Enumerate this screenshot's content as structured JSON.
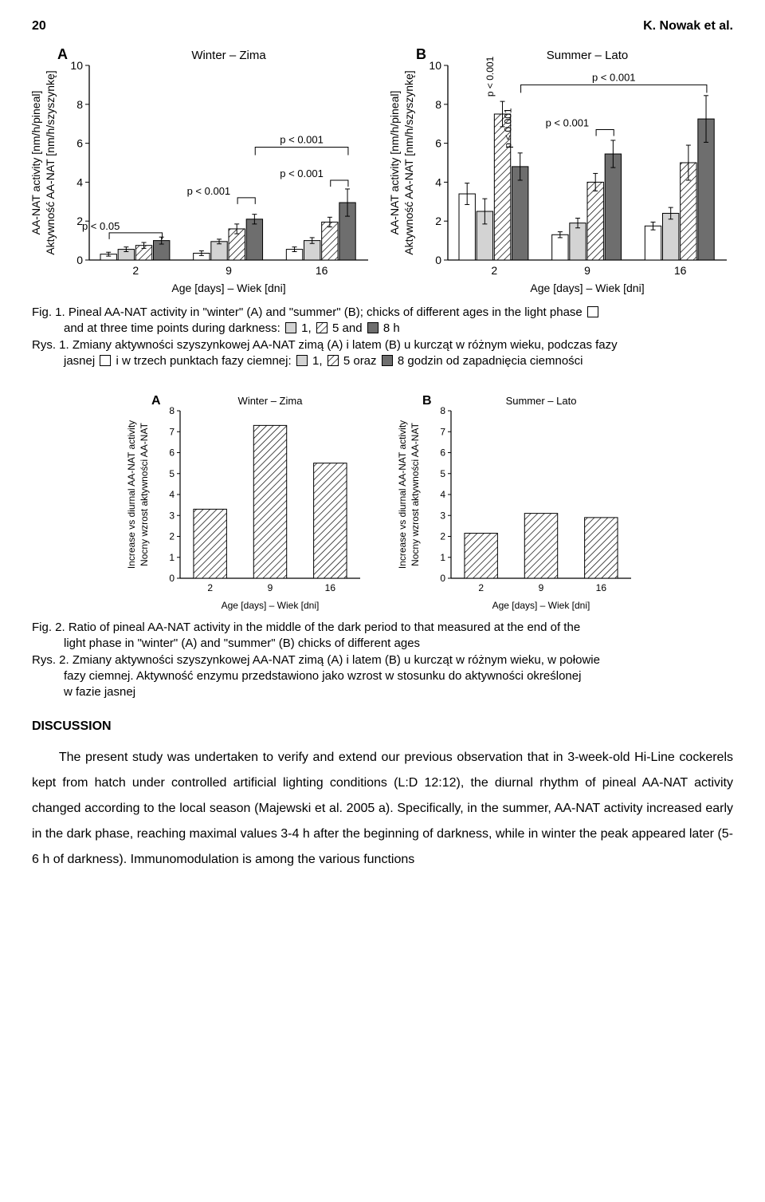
{
  "header": {
    "page_number": "20",
    "authors": "K. Nowak et al."
  },
  "fig1": {
    "panelA": {
      "letter": "A",
      "title": "Winter – Zima",
      "type": "grouped-bar",
      "x_label": "Age [days] – Wiek [dni]",
      "y_label_line1": "AA-NAT activity [nm/h/pineal]",
      "y_label_line2": "Aktywność AA-NAT [nm/h/szyszynkę]",
      "categories": [
        "2",
        "9",
        "16"
      ],
      "series_fill": [
        "#ffffff",
        "#d3d3d3",
        "hatch",
        "#6e6e6e"
      ],
      "values": [
        [
          0.3,
          0.55,
          0.75,
          1.0
        ],
        [
          0.35,
          0.95,
          1.6,
          2.1
        ],
        [
          0.55,
          1.0,
          1.95,
          2.95
        ]
      ],
      "errors": [
        [
          0.1,
          0.12,
          0.15,
          0.18
        ],
        [
          0.12,
          0.12,
          0.25,
          0.25
        ],
        [
          0.12,
          0.15,
          0.25,
          0.7
        ]
      ],
      "ylim": [
        0,
        10
      ],
      "ytick_step": 2,
      "sig_brackets": [
        {
          "group": 0,
          "i": 0,
          "j": 3,
          "y": 1.4,
          "label": "p < 0.05"
        },
        {
          "group": 1,
          "i": 2,
          "j": 3,
          "y": 3.2,
          "label": "p < 0.001"
        },
        {
          "group": 2,
          "i": 2,
          "j": 3,
          "y": 4.1,
          "label": "p < 0.001"
        }
      ],
      "sig_brackets_long": [
        {
          "g1": 1,
          "g2": 2,
          "y": 5.8,
          "label": "p < 0.001"
        }
      ],
      "axis_color": "#000000",
      "background_color": "#ffffff",
      "tick_fontsize": 14,
      "label_fontsize": 14,
      "letter_fontsize": 18
    },
    "panelB": {
      "letter": "B",
      "title": "Summer – Lato",
      "type": "grouped-bar",
      "x_label": "Age [days] – Wiek [dni]",
      "y_label_line1": "AA-NAT activity [nm/h/pineal]",
      "y_label_line2": "Aktywność AA-NAT [nm/h/szyszynkę]",
      "categories": [
        "2",
        "9",
        "16"
      ],
      "series_fill": [
        "#ffffff",
        "#d3d3d3",
        "hatch",
        "#6e6e6e"
      ],
      "values": [
        [
          3.4,
          2.5,
          7.5,
          4.8
        ],
        [
          1.3,
          1.9,
          4.0,
          5.45
        ],
        [
          1.75,
          2.4,
          5.0,
          7.25
        ]
      ],
      "errors": [
        [
          0.55,
          0.65,
          0.65,
          0.7
        ],
        [
          0.15,
          0.25,
          0.45,
          0.7
        ],
        [
          0.2,
          0.3,
          0.9,
          1.2
        ]
      ],
      "ylim": [
        0,
        10
      ],
      "ytick_step": 2,
      "sig_brackets": [
        {
          "group": 1,
          "i": 2,
          "j": 3,
          "y": 6.7,
          "label": "p < 0.001"
        }
      ],
      "sig_brackets_long": [
        {
          "g1": 0,
          "g2": 2,
          "y": 9.0,
          "label": "p < 0.001"
        }
      ],
      "extra_p_labels": [
        {
          "group": 0,
          "near_bar": 2,
          "rot": -90,
          "text": "p < 0.001"
        },
        {
          "group": 0,
          "near_bar": 3,
          "rot": -90,
          "text": "p < 0.001"
        }
      ],
      "axis_color": "#000000",
      "background_color": "#ffffff",
      "tick_fontsize": 14,
      "label_fontsize": 14,
      "letter_fontsize": 18
    },
    "caption_en_lead": "Fig. 1. Pineal AA-NAT activity in \"winter\" (A) and \"summer\" (B); chicks of different ages in the light phase",
    "caption_en_rest": "and at three time points during darkness:   1,   5 and   8 h",
    "caption_pl_lead": "Rys. 1. Zmiany aktywności szyszynkowej AA-NAT zimą (A) i latem (B) u kurcząt w różnym wieku, podczas fazy",
    "caption_pl_rest": "jasnej   i w trzech punktach fazy ciemnej:   1,   5 oraz   8 godzin od zapadnięcia ciemności",
    "legend_fills": {
      "open": "#ffffff",
      "grey": "#d3d3d3",
      "hatch": "hatch",
      "dark": "#6e6e6e"
    }
  },
  "fig2": {
    "panelA": {
      "letter": "A",
      "title": "Winter – Zima",
      "type": "bar",
      "x_label": "Age [days] – Wiek [dni]",
      "y_label_line1": "Increase vs diurnal AA-NAT activity",
      "y_label_line2": "Nocny wzrost aktywności AA-NAT",
      "categories": [
        "2",
        "9",
        "16"
      ],
      "values": [
        3.3,
        7.3,
        5.5
      ],
      "fill": "hatch",
      "ylim": [
        0,
        8
      ],
      "ytick_step": 1,
      "axis_color": "#000000",
      "tick_fontsize": 12,
      "label_fontsize": 12,
      "letter_fontsize": 16
    },
    "panelB": {
      "letter": "B",
      "title": "Summer – Lato",
      "type": "bar",
      "x_label": "Age [days] – Wiek [dni]",
      "y_label_line1": "Increase vs diurnal AA-NAT activity",
      "y_label_line2": "Nocny wzrost aktywności AA-NAT",
      "categories": [
        "2",
        "9",
        "16"
      ],
      "values": [
        2.15,
        3.1,
        2.9
      ],
      "fill": "hatch",
      "ylim": [
        0,
        8
      ],
      "ytick_step": 1,
      "axis_color": "#000000",
      "tick_fontsize": 12,
      "label_fontsize": 12,
      "letter_fontsize": 16
    },
    "caption_en_lead": "Fig. 2. Ratio of pineal AA-NAT activity in the middle of the dark period to that measured at the end of the",
    "caption_en_rest": "light phase in \"winter\" (A) and \"summer\" (B) chicks of different ages",
    "caption_pl_lead": "Rys. 2. Zmiany aktywności szyszynkowej AA-NAT zimą (A) i latem (B) u kurcząt w różnym wieku, w połowie",
    "caption_pl_rest1": "fazy ciemnej. Aktywność enzymu przedstawiono jako wzrost w stosunku do aktywności określonej",
    "caption_pl_rest2": "w fazie jasnej"
  },
  "discussion": {
    "heading": "DISCUSSION",
    "paragraph": "The present study was undertaken to verify and extend our previous observation that in 3-week-old Hi-Line cockerels kept from hatch under controlled artificial lighting conditions (L:D 12:12), the diurnal rhythm of pineal AA-NAT activity changed according to the local season (Majewski et al. 2005 a). Specifically, in the summer, AA-NAT activity increased early in the dark phase, reaching maximal values 3-4 h after the beginning of darkness, while in winter the peak appeared later (5-6 h of darkness). Immunomodulation is among the various functions"
  },
  "svg": {
    "fig1_panel_w": 430,
    "fig1_panel_h": 320,
    "fig2_panel_w": 300,
    "fig2_panel_h": 280,
    "plot_margin_fig1": {
      "l": 72,
      "r": 8,
      "t": 30,
      "b": 46
    },
    "plot_margin_fig2": {
      "l": 66,
      "r": 8,
      "t": 28,
      "b": 42
    },
    "bar_stroke": "#000000",
    "err_stroke": "#000000",
    "font": "Arial, Helvetica, sans-serif"
  }
}
